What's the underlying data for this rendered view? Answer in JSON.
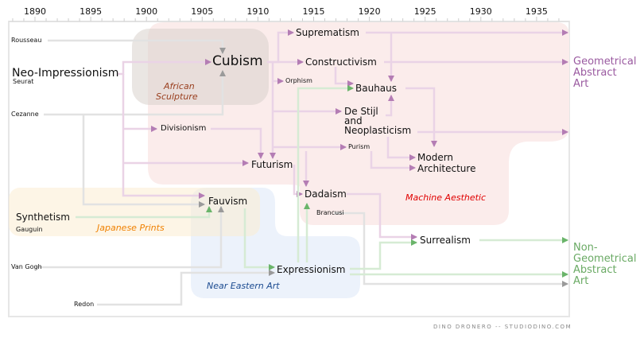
{
  "axis": {
    "years": [
      "1890",
      "1895",
      "1900",
      "1905",
      "1910",
      "1915",
      "1920",
      "1925",
      "1930",
      "1935"
    ],
    "start_year": 1890,
    "step": 5
  },
  "artists": {
    "rousseau": "Rousseau",
    "seurat": "Seurat",
    "cezanne": "Cezanne",
    "gauguin": "Gauguin",
    "van_gogh": "Van Gogh",
    "redon": "Redon",
    "brancusi": "Brancusi"
  },
  "movements": {
    "neo_impressionism": "Neo-Impressionism",
    "cubism": "Cubism",
    "suprematism": "Suprematism",
    "constructivism": "Constructivism",
    "orphism": "Orphism",
    "bauhaus": "Bauhaus",
    "de_stijl_1": "De Stijl",
    "de_stijl_2": "and",
    "de_stijl_3": "Neoplasticism",
    "divisionism": "Divisionism",
    "purism": "Purism",
    "futurism": "Futurism",
    "modern_1": "Modern",
    "modern_2": "Architecture",
    "dadaism": "Dadaism",
    "fauvism": "Fauvism",
    "synthetism": "Synthetism",
    "surrealism": "Surrealism",
    "expressionism": "Expressionism"
  },
  "regions": {
    "african_1": "African",
    "african_2": "Sculpture",
    "machine": "Machine Aesthetic",
    "japanese": "Japanese Prints",
    "near_eastern": "Near Eastern Art"
  },
  "outcomes": {
    "geometrical": [
      "Geometrical",
      "Abstract",
      "Art"
    ],
    "non_geometrical": [
      "Non-",
      "Geometrical",
      "Abstract",
      "Art"
    ]
  },
  "credit": "DINO DRONERO --  STUDIODINO.COM",
  "colors": {
    "machine_region": "#fbeceb",
    "african_region": "#ebe4df",
    "japanese_region": "#fdf4e6",
    "near_eastern_region": "#edf2fa",
    "purple": "#b47db4",
    "green": "#6ab46a",
    "gray": "#9a9a9a",
    "geometrical_text": "#9a5aa0",
    "non_geometrical_text": "#6aaa64",
    "african_text": "#9a4020",
    "machine_text": "#e00000",
    "japanese_text": "#f08000",
    "near_eastern_text": "#1a4a90"
  }
}
